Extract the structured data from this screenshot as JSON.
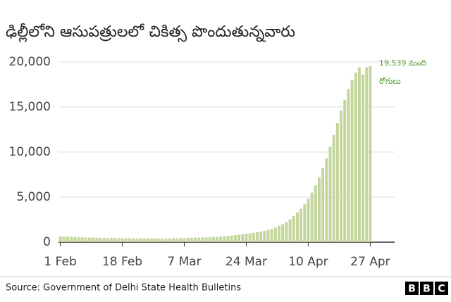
{
  "chart_data": {
    "type": "bar",
    "title": "ఢిల్లీలోని ఆసుపత్రులలో చికిత్స పొందుతున్నవారు",
    "categories": [
      "1 Feb",
      null,
      null,
      null,
      null,
      null,
      null,
      null,
      null,
      null,
      null,
      null,
      null,
      null,
      null,
      null,
      null,
      "18 Feb",
      null,
      null,
      null,
      null,
      null,
      null,
      null,
      null,
      null,
      null,
      null,
      null,
      null,
      null,
      null,
      null,
      "7 Mar",
      null,
      null,
      null,
      null,
      null,
      null,
      null,
      null,
      null,
      null,
      null,
      null,
      null,
      null,
      null,
      null,
      "24 Mar",
      null,
      null,
      null,
      null,
      null,
      null,
      null,
      null,
      null,
      null,
      null,
      null,
      null,
      null,
      null,
      null,
      "10 Apr",
      null,
      null,
      null,
      null,
      null,
      null,
      null,
      null,
      null,
      null,
      null,
      null,
      null,
      null,
      null,
      null,
      "27 Apr"
    ],
    "values": [
      650,
      640,
      620,
      600,
      580,
      560,
      540,
      520,
      510,
      500,
      490,
      480,
      470,
      460,
      455,
      450,
      445,
      440,
      435,
      430,
      425,
      420,
      420,
      415,
      410,
      410,
      405,
      400,
      400,
      400,
      410,
      420,
      430,
      450,
      470,
      480,
      490,
      500,
      510,
      520,
      540,
      560,
      580,
      600,
      630,
      660,
      700,
      740,
      780,
      830,
      880,
      930,
      980,
      1040,
      1100,
      1170,
      1250,
      1350,
      1480,
      1620,
      1800,
      2000,
      2250,
      2550,
      2900,
      3300,
      3700,
      4200,
      4800,
      5500,
      6300,
      7200,
      8200,
      9300,
      10600,
      11900,
      13200,
      14600,
      15800,
      17000,
      18000,
      18800,
      19400,
      18600,
      19400,
      19539
    ],
    "color": "#c3d69b",
    "ylim": [
      0,
      20000
    ],
    "yticks": [
      0,
      {
        "value": 5000,
        "label": "5,000"
      },
      {
        "value": 10000,
        "label": "10,000"
      },
      {
        "value": 15000,
        "label": "15,000"
      },
      {
        "value": 20000,
        "label": "20,000"
      }
    ],
    "grid": true,
    "annotation": [
      "19,539 మంది",
      "రోగులు"
    ],
    "annotation_color": "#4f9a2a",
    "source": "Source: Government of Delhi State Health Bulletins",
    "logo": [
      "B",
      "B",
      "C"
    ]
  }
}
